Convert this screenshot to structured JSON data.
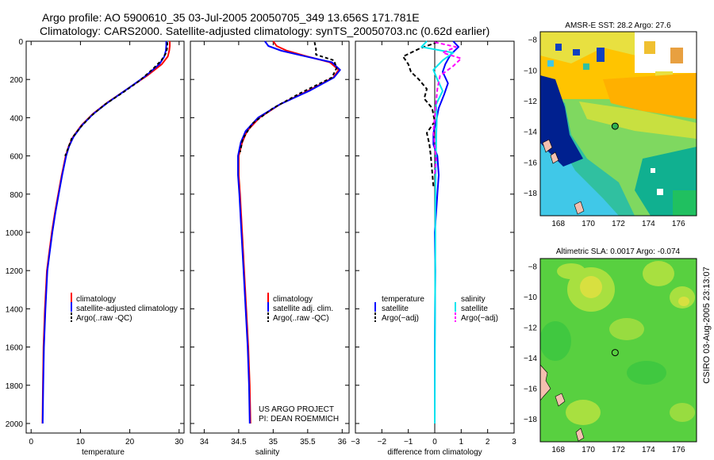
{
  "header": {
    "title_line1": "Argo profile: AO 5900610_35 03-Jul-2005 20050705_349 13.656S 171.781E",
    "title_line2": "Climatology: CARS2000. Satellite-adjusted climatology: synTS_20050703.nc (0.62d earlier)"
  },
  "credit": {
    "line1": "US ARGO PROJECT",
    "line2": "PI: DEAN ROEMMICH"
  },
  "side_stamp": "CSIRO 03-Aug-2005 23:13:07",
  "colors": {
    "climatology": "#ff0000",
    "satellite": "#0000ff",
    "argo": "#000000",
    "sal_sat": "#00e5ee",
    "sal_argo": "#ff00ff"
  },
  "chart_data": [
    {
      "type": "line",
      "id": "temperature",
      "xlabel": "temperature",
      "ylabel": "",
      "xlim": [
        -1,
        31
      ],
      "ylim": [
        2050,
        0
      ],
      "xticks": [
        0,
        10,
        20,
        30
      ],
      "yticks": [
        0,
        200,
        400,
        600,
        800,
        1000,
        1200,
        1400,
        1600,
        1800,
        2000
      ],
      "legend": [
        "climatology",
        "satellite-adjusted climatology",
        "Argo(..raw -QC)"
      ],
      "series": [
        {
          "name": "climatology",
          "color": "red",
          "dash": "",
          "x": [
            28.1,
            28.1,
            28.0,
            27.7,
            26.5,
            23.5,
            19.5,
            15.5,
            12.5,
            10.2,
            8.5,
            7.6,
            7.0,
            6.2,
            5.5,
            4.8,
            4.2,
            3.7,
            3.2,
            2.8,
            2.5,
            2.4,
            2.3
          ],
          "y": [
            0,
            25,
            50,
            80,
            120,
            180,
            250,
            320,
            380,
            440,
            500,
            550,
            600,
            700,
            800,
            900,
            1000,
            1100,
            1200,
            1400,
            1600,
            1800,
            2000
          ]
        },
        {
          "name": "satellite-adjusted climatology",
          "color": "blue",
          "dash": "",
          "x": [
            27.4,
            27.4,
            27.3,
            27.0,
            26.0,
            23.3,
            19.5,
            15.6,
            12.6,
            10.3,
            8.6,
            7.7,
            7.1,
            6.3,
            5.6,
            4.9,
            4.3,
            3.8,
            3.3,
            2.9,
            2.6,
            2.45,
            2.35
          ],
          "y": [
            0,
            25,
            50,
            80,
            120,
            180,
            250,
            320,
            380,
            440,
            500,
            550,
            600,
            700,
            800,
            900,
            1000,
            1100,
            1200,
            1400,
            1600,
            1800,
            2000
          ]
        },
        {
          "name": "Argo(..raw -QC)",
          "color": "black",
          "dash": "4,3",
          "x": [
            27.6,
            27.6,
            27.4,
            26.4,
            24.5,
            21.8,
            18.5,
            15.0,
            12.2,
            10.0,
            8.2,
            7.5,
            6.9
          ],
          "y": [
            5,
            30,
            60,
            100,
            150,
            210,
            270,
            330,
            390,
            450,
            510,
            560,
            600
          ]
        }
      ]
    },
    {
      "type": "line",
      "id": "salinity",
      "xlabel": "salinity",
      "ylabel": "",
      "xlim": [
        33.8,
        36.1
      ],
      "ylim": [
        2050,
        0
      ],
      "xticks": [
        34,
        34.5,
        35,
        35.5,
        36
      ],
      "xticklabels": [
        "34",
        "34.5",
        "35",
        "35.5",
        "36"
      ],
      "yticks": [],
      "legend": [
        "climatology",
        "satellite adj. clim.",
        "Argo(..raw -QC)"
      ],
      "series": [
        {
          "name": "climatology",
          "color": "red",
          "dash": "",
          "x": [
            35.0,
            35.05,
            35.2,
            35.5,
            35.82,
            35.95,
            35.87,
            35.5,
            35.1,
            34.8,
            34.62,
            34.55,
            34.5,
            34.5,
            34.52,
            34.55,
            34.58,
            34.61,
            34.64,
            34.66,
            34.67
          ],
          "y": [
            0,
            25,
            50,
            80,
            110,
            150,
            190,
            260,
            330,
            400,
            470,
            530,
            600,
            700,
            800,
            1000,
            1200,
            1400,
            1600,
            1800,
            2000
          ]
        },
        {
          "name": "satellite adj. clim.",
          "color": "blue",
          "dash": "",
          "x": [
            34.88,
            34.93,
            35.12,
            35.48,
            35.85,
            35.97,
            35.88,
            35.52,
            35.1,
            34.78,
            34.6,
            34.53,
            34.49,
            34.49,
            34.51,
            34.54,
            34.57,
            34.6,
            34.63,
            34.65,
            34.66
          ],
          "y": [
            0,
            25,
            50,
            80,
            110,
            150,
            190,
            260,
            330,
            400,
            470,
            530,
            600,
            700,
            800,
            1000,
            1200,
            1400,
            1600,
            1800,
            2000
          ]
        },
        {
          "name": "Argo(..raw -QC)",
          "color": "black",
          "dash": "4,3",
          "x": [
            35.6,
            35.62,
            35.62,
            35.88,
            35.92,
            35.85,
            35.4,
            35.0,
            34.7,
            34.56,
            34.52
          ],
          "y": [
            5,
            40,
            70,
            100,
            140,
            190,
            270,
            350,
            430,
            510,
            580
          ]
        }
      ]
    },
    {
      "type": "line",
      "id": "difference",
      "xlabel": "difference from climatology",
      "ylabel": "",
      "xlim": [
        -3,
        3
      ],
      "ylim": [
        2050,
        0
      ],
      "xticks": [
        -3,
        -2,
        -1,
        0,
        1,
        2,
        3
      ],
      "yticks": [],
      "legend_temperature": {
        "title": "temperature",
        "items": [
          "satellite",
          "Argo(−adj)"
        ]
      },
      "legend_salinity": {
        "title": "salinity",
        "items": [
          "satellite",
          "Argo(−adj)"
        ]
      },
      "series": [
        {
          "name": "temperature satellite",
          "color": "blue",
          "dash": "",
          "x": [
            0.7,
            0.9,
            0.6,
            0.4,
            0.3,
            0.5,
            0.35,
            0.15,
            0.05,
            -0.05,
            -0.05,
            0.1,
            0.15,
            0.1,
            0.05,
            0.0,
            0.02,
            0.0,
            0.0
          ],
          "y": [
            0,
            30,
            70,
            120,
            160,
            220,
            280,
            350,
            420,
            480,
            540,
            600,
            700,
            800,
            900,
            1000,
            1200,
            1600,
            2000
          ]
        },
        {
          "name": "temperature Argo(-adj)",
          "color": "black",
          "dash": "5,3",
          "x": [
            0.1,
            -0.6,
            -1.2,
            -1.0,
            -0.9,
            -0.6,
            -0.3,
            -0.4,
            -0.1,
            0.0,
            -0.3,
            -0.2,
            -0.15,
            -0.1,
            -0.05
          ],
          "y": [
            5,
            40,
            80,
            120,
            160,
            200,
            250,
            300,
            350,
            420,
            480,
            540,
            600,
            680,
            760
          ]
        },
        {
          "name": "salinity satellite",
          "color": "cyan",
          "dash": "",
          "x": [
            -0.3,
            -0.5,
            0.7,
            0.3,
            -0.05,
            0.1,
            0.3,
            0.05,
            0.08,
            0.06,
            0.05,
            0.04,
            0.03,
            0.02,
            0.02,
            0.01,
            0.0
          ],
          "y": [
            0,
            30,
            60,
            100,
            150,
            200,
            260,
            330,
            400,
            480,
            560,
            650,
            750,
            900,
            1100,
            1500,
            2000
          ]
        },
        {
          "name": "salinity Argo(-adj)",
          "color": "magenta",
          "dash": "5,3",
          "x": [
            0.0,
            0.8,
            0.3,
            1.0,
            0.7,
            0.2,
            0.1,
            0.05,
            0.0,
            -0.05,
            0.0,
            0.05,
            0.0
          ],
          "y": [
            5,
            30,
            60,
            90,
            130,
            180,
            250,
            320,
            400,
            470,
            540,
            620,
            700
          ]
        }
      ]
    },
    {
      "type": "heatmap",
      "id": "sst-map",
      "title": "AMSR-E SST: 28.2 Argo: 27.6",
      "xticks": [
        168,
        170,
        172,
        174,
        176
      ],
      "yticks": [
        -8,
        -10,
        -12,
        -14,
        -16,
        -18
      ],
      "xlim": [
        166.8,
        177.2
      ],
      "ylim": [
        -19.5,
        -7.5
      ],
      "marker": {
        "lon": 171.78,
        "lat": -13.66
      }
    },
    {
      "type": "heatmap",
      "id": "sla-map",
      "title": "Altimetric SLA: 0.0017 Argo: -0.074",
      "xticks": [
        168,
        170,
        172,
        174,
        176
      ],
      "yticks": [
        -8,
        -10,
        -12,
        -14,
        -16,
        -18
      ],
      "xlim": [
        166.8,
        177.2
      ],
      "ylim": [
        -19.5,
        -7.5
      ],
      "marker": {
        "lon": 171.78,
        "lat": -13.66
      }
    }
  ]
}
